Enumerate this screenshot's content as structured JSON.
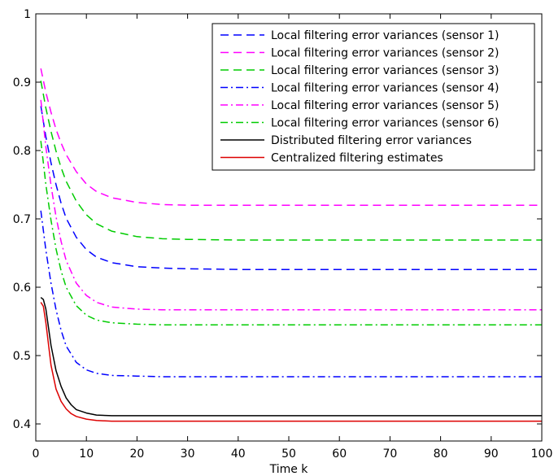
{
  "chart_data": {
    "type": "line",
    "title": "",
    "xlabel": "Time k",
    "ylabel": "",
    "xlim": [
      0,
      100
    ],
    "ylim": [
      0.375,
      1.0
    ],
    "x_ticks": [
      0,
      10,
      20,
      30,
      40,
      50,
      60,
      70,
      80,
      90,
      100
    ],
    "y_ticks": [
      0.4,
      0.5,
      0.6,
      0.7,
      0.8,
      0.9,
      1
    ],
    "x_tick_labels": [
      "0",
      "10",
      "20",
      "30",
      "40",
      "50",
      "60",
      "70",
      "80",
      "90",
      "100"
    ],
    "y_tick_labels": [
      "0.4",
      "0.5",
      "0.6",
      "0.7",
      "0.8",
      "0.9",
      "1"
    ],
    "grid": false,
    "legend_position": "top-right",
    "series": [
      {
        "name": "Local filtering error variances (sensor 1)",
        "color": "#0000ff",
        "dash": "dashed",
        "x": [
          1,
          2,
          3,
          4,
          5,
          6,
          8,
          10,
          12,
          15,
          20,
          25,
          30,
          40,
          50,
          60,
          70,
          80,
          90,
          100
        ],
        "y": [
          0.865,
          0.82,
          0.782,
          0.75,
          0.723,
          0.701,
          0.673,
          0.655,
          0.644,
          0.636,
          0.63,
          0.628,
          0.627,
          0.626,
          0.626,
          0.626,
          0.626,
          0.626,
          0.626,
          0.626
        ]
      },
      {
        "name": "Local filtering error variances (sensor 2)",
        "color": "#ff00ff",
        "dash": "dashed",
        "x": [
          1,
          2,
          3,
          4,
          5,
          6,
          8,
          10,
          12,
          15,
          20,
          25,
          30,
          40,
          50,
          60,
          70,
          80,
          90,
          100
        ],
        "y": [
          0.92,
          0.885,
          0.856,
          0.831,
          0.811,
          0.794,
          0.769,
          0.751,
          0.74,
          0.731,
          0.724,
          0.721,
          0.72,
          0.72,
          0.72,
          0.72,
          0.72,
          0.72,
          0.72,
          0.72
        ]
      },
      {
        "name": "Local filtering error variances (sensor 3)",
        "color": "#00cc00",
        "dash": "dashed",
        "x": [
          1,
          2,
          3,
          4,
          5,
          6,
          8,
          10,
          12,
          15,
          20,
          25,
          30,
          40,
          50,
          60,
          70,
          80,
          90,
          100
        ],
        "y": [
          0.902,
          0.862,
          0.828,
          0.799,
          0.775,
          0.755,
          0.726,
          0.706,
          0.693,
          0.682,
          0.674,
          0.671,
          0.67,
          0.669,
          0.669,
          0.669,
          0.669,
          0.669,
          0.669,
          0.669
        ]
      },
      {
        "name": "Local filtering error variances (sensor 4)",
        "color": "#0000ff",
        "dash": "dashdot",
        "x": [
          1,
          2,
          3,
          4,
          5,
          6,
          8,
          10,
          12,
          15,
          20,
          25,
          30,
          40,
          50,
          60,
          70,
          80,
          90,
          100
        ],
        "y": [
          0.712,
          0.654,
          0.606,
          0.567,
          0.537,
          0.514,
          0.49,
          0.479,
          0.474,
          0.471,
          0.47,
          0.469,
          0.469,
          0.469,
          0.469,
          0.469,
          0.469,
          0.469,
          0.469,
          0.469
        ]
      },
      {
        "name": "Local filtering error variances (sensor 5)",
        "color": "#ff00ff",
        "dash": "dashdot",
        "x": [
          1,
          2,
          3,
          4,
          5,
          6,
          8,
          10,
          12,
          15,
          20,
          25,
          30,
          40,
          50,
          60,
          70,
          80,
          90,
          100
        ],
        "y": [
          0.874,
          0.805,
          0.749,
          0.703,
          0.667,
          0.639,
          0.606,
          0.588,
          0.578,
          0.571,
          0.568,
          0.567,
          0.567,
          0.567,
          0.567,
          0.567,
          0.567,
          0.567,
          0.567,
          0.567
        ]
      },
      {
        "name": "Local filtering error variances (sensor 6)",
        "color": "#00cc00",
        "dash": "dashdot",
        "x": [
          1,
          2,
          3,
          4,
          5,
          6,
          8,
          10,
          12,
          15,
          20,
          25,
          30,
          40,
          50,
          60,
          70,
          80,
          90,
          100
        ],
        "y": [
          0.814,
          0.75,
          0.698,
          0.656,
          0.624,
          0.6,
          0.573,
          0.559,
          0.552,
          0.548,
          0.546,
          0.545,
          0.545,
          0.545,
          0.545,
          0.545,
          0.545,
          0.545,
          0.545,
          0.545
        ]
      },
      {
        "name": "Distributed filtering error variances",
        "color": "#000000",
        "dash": "solid",
        "x": [
          1,
          1.5,
          2,
          3,
          4,
          5,
          6,
          7,
          8,
          10,
          12,
          15,
          20,
          30,
          40,
          50,
          60,
          70,
          80,
          90,
          100
        ],
        "y": [
          0.585,
          0.582,
          0.568,
          0.515,
          0.478,
          0.455,
          0.438,
          0.428,
          0.421,
          0.416,
          0.413,
          0.412,
          0.412,
          0.412,
          0.412,
          0.412,
          0.412,
          0.412,
          0.412,
          0.412,
          0.412
        ]
      },
      {
        "name": "Centralized filtering estimates",
        "color": "#dd0000",
        "dash": "solid",
        "x": [
          1,
          1.5,
          2,
          3,
          4,
          5,
          6,
          7,
          8,
          10,
          12,
          15,
          20,
          30,
          40,
          50,
          60,
          70,
          80,
          90,
          100
        ],
        "y": [
          0.578,
          0.572,
          0.548,
          0.486,
          0.451,
          0.433,
          0.422,
          0.415,
          0.411,
          0.407,
          0.405,
          0.404,
          0.404,
          0.404,
          0.404,
          0.404,
          0.404,
          0.404,
          0.404,
          0.404,
          0.404
        ]
      }
    ]
  }
}
